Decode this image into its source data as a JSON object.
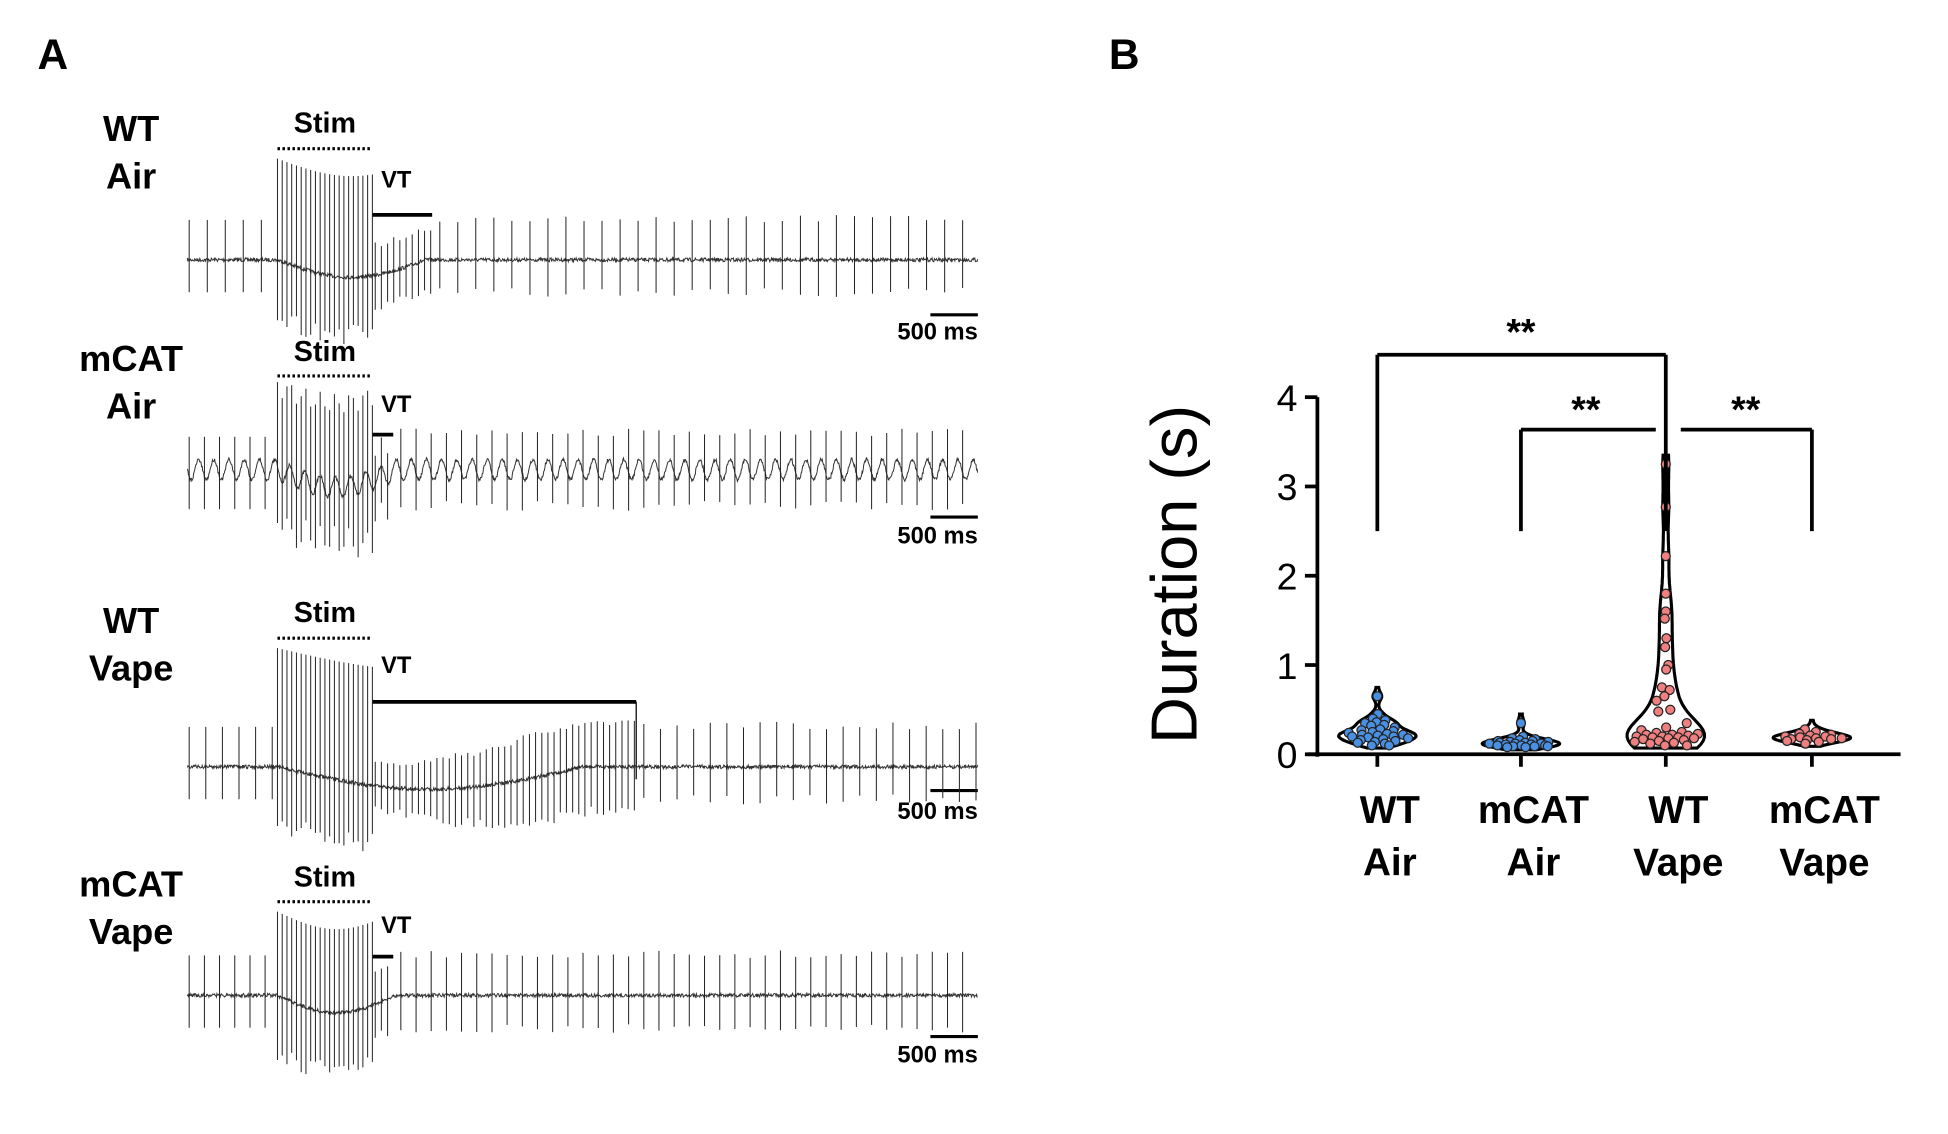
{
  "panel_a": {
    "label": "A",
    "stim_label": "Stim",
    "vt_label": "VT",
    "scale_bar_label": "500 ms",
    "scale_bar_ms": 500,
    "traces": [
      {
        "line1": "WT",
        "line2": "Air",
        "stim_start_ms": 950,
        "stim_end_ms": 1950,
        "vt_ms": 630,
        "sinus_interval_ms": 190,
        "mode": "air"
      },
      {
        "line1": "mCAT",
        "line2": "Air",
        "stim_start_ms": 950,
        "stim_end_ms": 1950,
        "vt_ms": 220,
        "sinus_interval_ms": 160,
        "mode": "wavy"
      },
      {
        "line1": "WT",
        "line2": "Vape",
        "stim_start_ms": 950,
        "stim_end_ms": 1950,
        "vt_ms": 2780,
        "sinus_interval_ms": 175,
        "mode": "vape"
      },
      {
        "line1": "mCAT",
        "line2": "Vape",
        "stim_start_ms": 950,
        "stim_end_ms": 1950,
        "vt_ms": 220,
        "sinus_interval_ms": 160,
        "mode": "air"
      }
    ]
  },
  "chart_data": {
    "label": "B",
    "type": "violin",
    "ylabel": "Duration (s)",
    "ylim": [
      0,
      4
    ],
    "yticks": [
      "0",
      "1",
      "2",
      "3",
      "4"
    ],
    "categories": [
      {
        "line1": "WT",
        "line2": "Air",
        "color": "#4a90e2",
        "values": [
          0.65,
          0.45,
          0.4,
          0.38,
          0.36,
          0.35,
          0.33,
          0.32,
          0.3,
          0.28,
          0.27,
          0.26,
          0.25,
          0.24,
          0.23,
          0.22,
          0.22,
          0.21,
          0.2,
          0.2,
          0.19,
          0.18,
          0.17,
          0.16,
          0.15,
          0.14,
          0.13,
          0.12,
          0.1,
          0.1
        ]
      },
      {
        "line1": "mCAT",
        "line2": "Air",
        "color": "#4a90e2",
        "values": [
          0.35,
          0.2,
          0.18,
          0.17,
          0.16,
          0.15,
          0.15,
          0.14,
          0.14,
          0.13,
          0.13,
          0.12,
          0.12,
          0.12,
          0.11,
          0.11,
          0.1,
          0.1,
          0.1,
          0.09,
          0.09,
          0.09,
          0.08,
          0.08
        ]
      },
      {
        "line1": "WT",
        "line2": "Vape",
        "color": "#f08080",
        "values": [
          3.25,
          2.77,
          2.22,
          1.8,
          1.6,
          1.52,
          1.3,
          1.2,
          1.0,
          0.95,
          0.75,
          0.72,
          0.65,
          0.6,
          0.5,
          0.48,
          0.35,
          0.3,
          0.27,
          0.25,
          0.24,
          0.23,
          0.22,
          0.22,
          0.21,
          0.2,
          0.2,
          0.19,
          0.19,
          0.18,
          0.18,
          0.17,
          0.16,
          0.15,
          0.14,
          0.13,
          0.12,
          0.1,
          0.1
        ]
      },
      {
        "line1": "mCAT",
        "line2": "Vape",
        "color": "#f08080",
        "values": [
          0.28,
          0.25,
          0.23,
          0.22,
          0.21,
          0.2,
          0.2,
          0.19,
          0.18,
          0.18,
          0.17,
          0.17,
          0.16,
          0.15,
          0.14,
          0.12
        ]
      }
    ],
    "comparisons": [
      {
        "from": 0,
        "to": 2,
        "label": "**"
      },
      {
        "from": 1,
        "to": 2,
        "label": "**"
      },
      {
        "from": 2,
        "to": 3,
        "label": "**"
      }
    ]
  }
}
